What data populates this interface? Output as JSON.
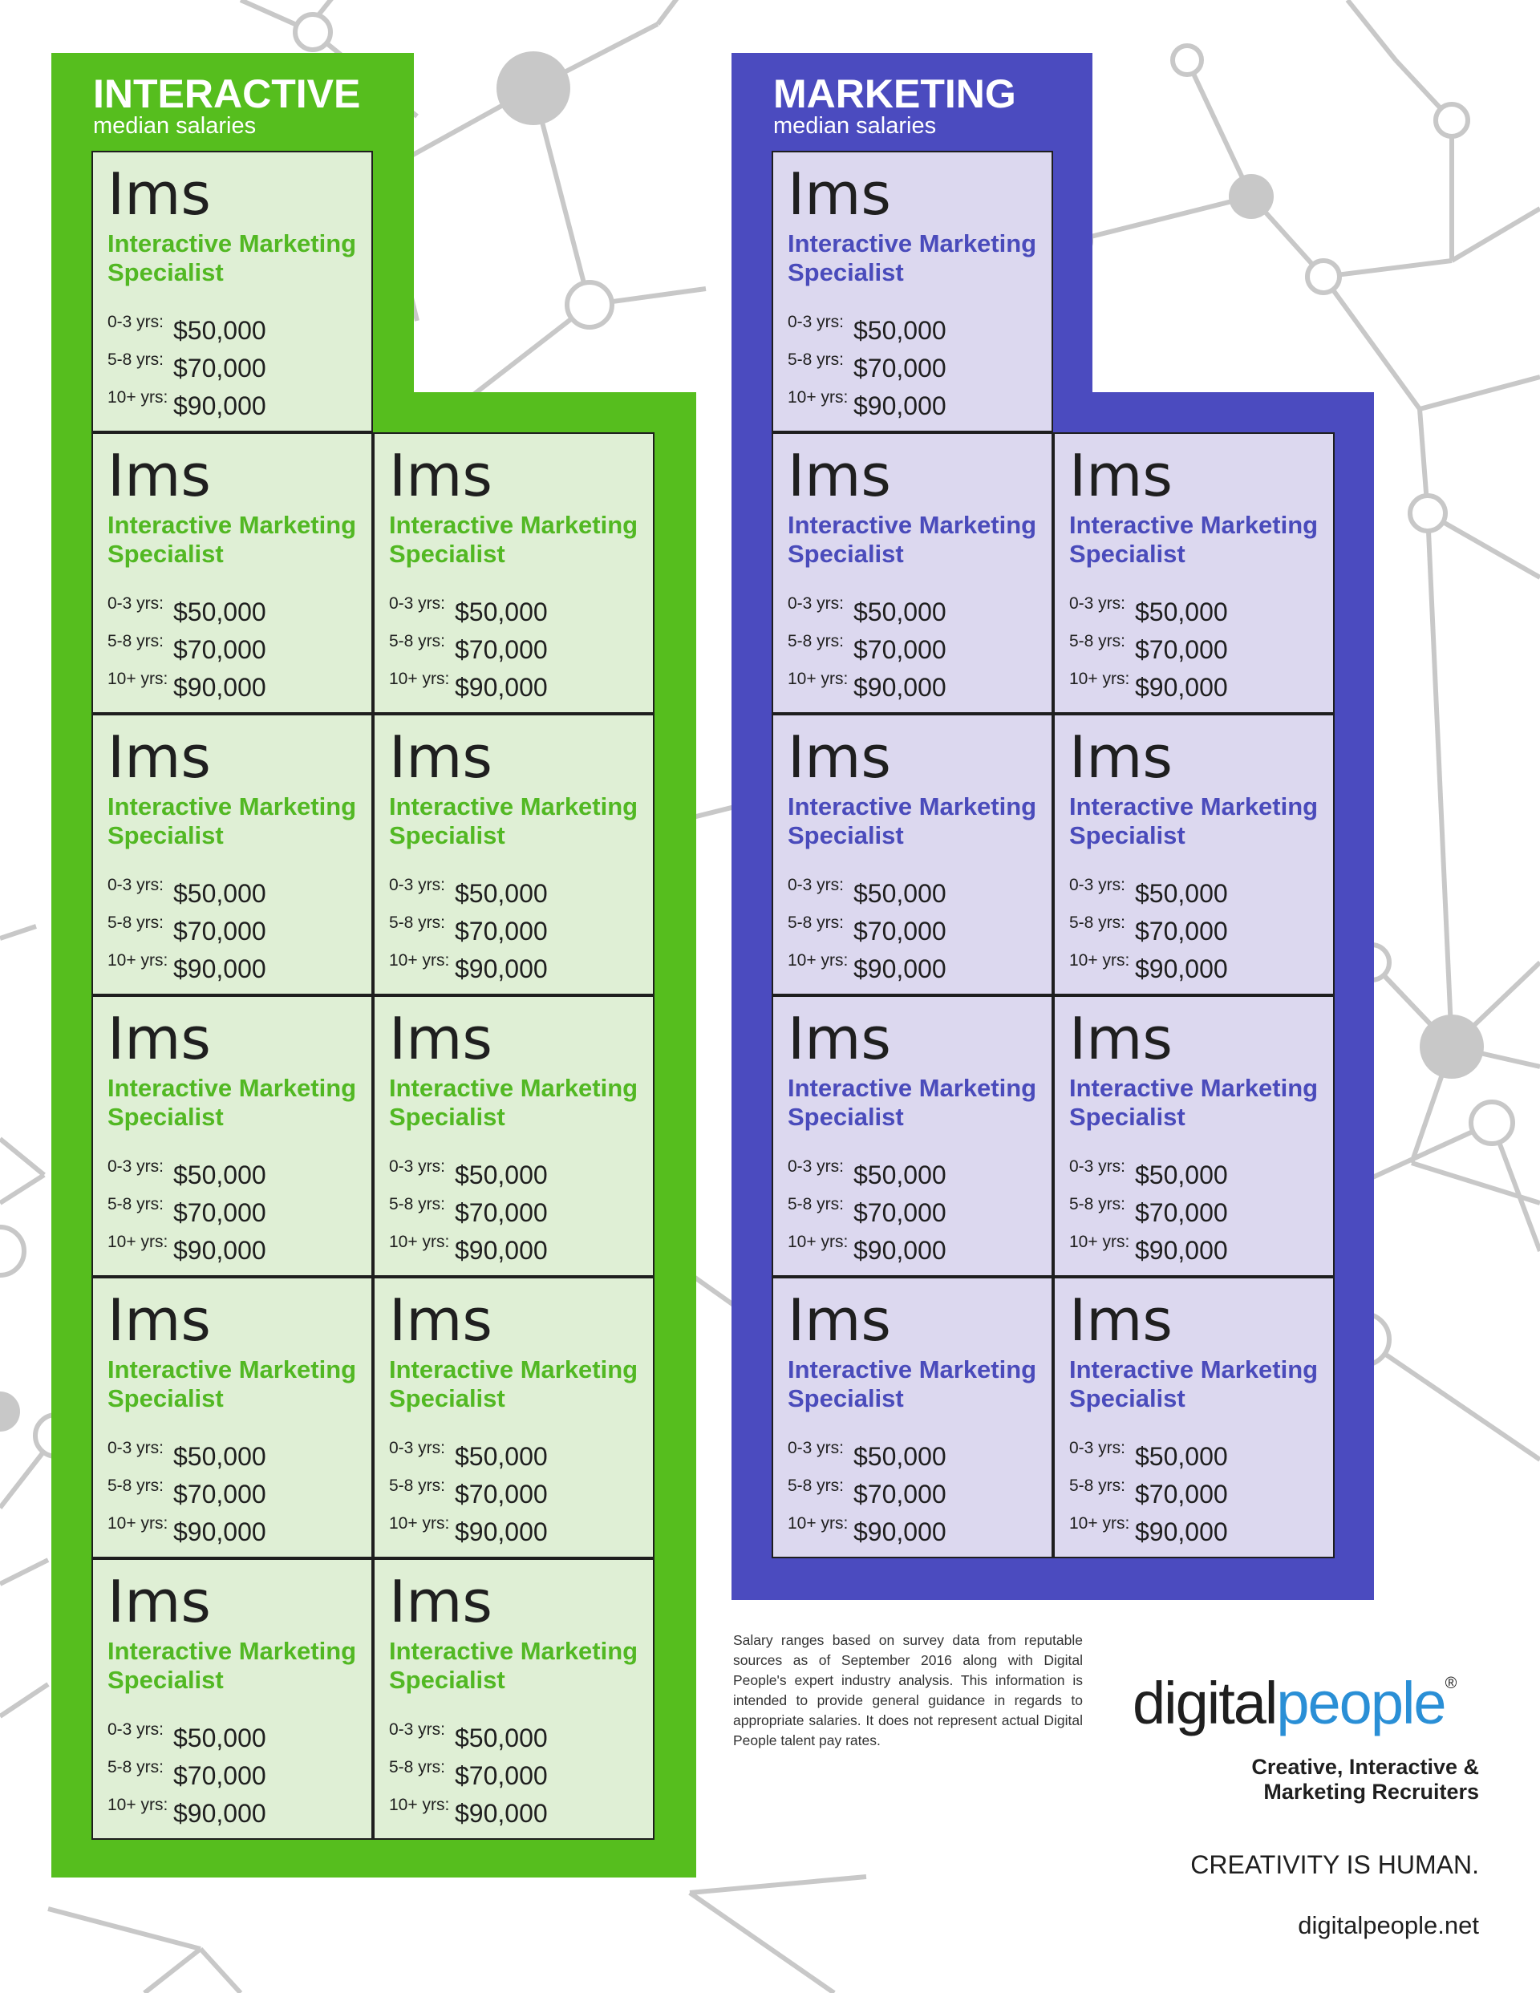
{
  "colors": {
    "interactive_accent": "#56be1e",
    "interactive_card": "#dfefd5",
    "marketing_accent": "#4b4bbf",
    "marketing_card": "#dcd8ef",
    "logo_blue": "#2a8fd6",
    "network_gray": "#c8c8c8"
  },
  "interactive": {
    "title": "INTERACTIVE",
    "subtitle": "median salaries",
    "cards": [
      {
        "abbr": "Ims",
        "title_line1": "Interactive Marketing",
        "title_line2": "Specialist",
        "salaries": [
          {
            "label": "0-3 yrs:",
            "value": "$50,000"
          },
          {
            "label": "5-8 yrs:",
            "value": "$70,000"
          },
          {
            "label": "10+ yrs:",
            "value": "$90,000"
          }
        ]
      },
      {
        "abbr": "Ims",
        "title_line1": "Interactive Marketing",
        "title_line2": "Specialist",
        "salaries": [
          {
            "label": "0-3 yrs:",
            "value": "$50,000"
          },
          {
            "label": "5-8 yrs:",
            "value": "$70,000"
          },
          {
            "label": "10+ yrs:",
            "value": "$90,000"
          }
        ]
      },
      {
        "abbr": "Ims",
        "title_line1": "Interactive Marketing",
        "title_line2": "Specialist",
        "salaries": [
          {
            "label": "0-3 yrs:",
            "value": "$50,000"
          },
          {
            "label": "5-8 yrs:",
            "value": "$70,000"
          },
          {
            "label": "10+ yrs:",
            "value": "$90,000"
          }
        ]
      },
      {
        "abbr": "Ims",
        "title_line1": "Interactive Marketing",
        "title_line2": "Specialist",
        "salaries": [
          {
            "label": "0-3 yrs:",
            "value": "$50,000"
          },
          {
            "label": "5-8 yrs:",
            "value": "$70,000"
          },
          {
            "label": "10+ yrs:",
            "value": "$90,000"
          }
        ]
      },
      {
        "abbr": "Ims",
        "title_line1": "Interactive Marketing",
        "title_line2": "Specialist",
        "salaries": [
          {
            "label": "0-3 yrs:",
            "value": "$50,000"
          },
          {
            "label": "5-8 yrs:",
            "value": "$70,000"
          },
          {
            "label": "10+ yrs:",
            "value": "$90,000"
          }
        ]
      },
      {
        "abbr": "Ims",
        "title_line1": "Interactive Marketing",
        "title_line2": "Specialist",
        "salaries": [
          {
            "label": "0-3 yrs:",
            "value": "$50,000"
          },
          {
            "label": "5-8 yrs:",
            "value": "$70,000"
          },
          {
            "label": "10+ yrs:",
            "value": "$90,000"
          }
        ]
      },
      {
        "abbr": "Ims",
        "title_line1": "Interactive Marketing",
        "title_line2": "Specialist",
        "salaries": [
          {
            "label": "0-3 yrs:",
            "value": "$50,000"
          },
          {
            "label": "5-8 yrs:",
            "value": "$70,000"
          },
          {
            "label": "10+ yrs:",
            "value": "$90,000"
          }
        ]
      },
      {
        "abbr": "Ims",
        "title_line1": "Interactive Marketing",
        "title_line2": "Specialist",
        "salaries": [
          {
            "label": "0-3 yrs:",
            "value": "$50,000"
          },
          {
            "label": "5-8 yrs:",
            "value": "$70,000"
          },
          {
            "label": "10+ yrs:",
            "value": "$90,000"
          }
        ]
      },
      {
        "abbr": "Ims",
        "title_line1": "Interactive Marketing",
        "title_line2": "Specialist",
        "salaries": [
          {
            "label": "0-3 yrs:",
            "value": "$50,000"
          },
          {
            "label": "5-8 yrs:",
            "value": "$70,000"
          },
          {
            "label": "10+ yrs:",
            "value": "$90,000"
          }
        ]
      },
      {
        "abbr": "Ims",
        "title_line1": "Interactive Marketing",
        "title_line2": "Specialist",
        "salaries": [
          {
            "label": "0-3 yrs:",
            "value": "$50,000"
          },
          {
            "label": "5-8 yrs:",
            "value": "$70,000"
          },
          {
            "label": "10+ yrs:",
            "value": "$90,000"
          }
        ]
      },
      {
        "abbr": "Ims",
        "title_line1": "Interactive Marketing",
        "title_line2": "Specialist",
        "salaries": [
          {
            "label": "0-3 yrs:",
            "value": "$50,000"
          },
          {
            "label": "5-8 yrs:",
            "value": "$70,000"
          },
          {
            "label": "10+ yrs:",
            "value": "$90,000"
          }
        ]
      }
    ]
  },
  "marketing": {
    "title": "MARKETING",
    "subtitle": "median salaries",
    "cards": [
      {
        "abbr": "Ims",
        "title_line1": "Interactive Marketing",
        "title_line2": "Specialist",
        "salaries": [
          {
            "label": "0-3 yrs:",
            "value": "$50,000"
          },
          {
            "label": "5-8 yrs:",
            "value": "$70,000"
          },
          {
            "label": "10+ yrs:",
            "value": "$90,000"
          }
        ]
      },
      {
        "abbr": "Ims",
        "title_line1": "Interactive Marketing",
        "title_line2": "Specialist",
        "salaries": [
          {
            "label": "0-3 yrs:",
            "value": "$50,000"
          },
          {
            "label": "5-8 yrs:",
            "value": "$70,000"
          },
          {
            "label": "10+ yrs:",
            "value": "$90,000"
          }
        ]
      },
      {
        "abbr": "Ims",
        "title_line1": "Interactive Marketing",
        "title_line2": "Specialist",
        "salaries": [
          {
            "label": "0-3 yrs:",
            "value": "$50,000"
          },
          {
            "label": "5-8 yrs:",
            "value": "$70,000"
          },
          {
            "label": "10+ yrs:",
            "value": "$90,000"
          }
        ]
      },
      {
        "abbr": "Ims",
        "title_line1": "Interactive Marketing",
        "title_line2": "Specialist",
        "salaries": [
          {
            "label": "0-3 yrs:",
            "value": "$50,000"
          },
          {
            "label": "5-8 yrs:",
            "value": "$70,000"
          },
          {
            "label": "10+ yrs:",
            "value": "$90,000"
          }
        ]
      },
      {
        "abbr": "Ims",
        "title_line1": "Interactive Marketing",
        "title_line2": "Specialist",
        "salaries": [
          {
            "label": "0-3 yrs:",
            "value": "$50,000"
          },
          {
            "label": "5-8 yrs:",
            "value": "$70,000"
          },
          {
            "label": "10+ yrs:",
            "value": "$90,000"
          }
        ]
      },
      {
        "abbr": "Ims",
        "title_line1": "Interactive Marketing",
        "title_line2": "Specialist",
        "salaries": [
          {
            "label": "0-3 yrs:",
            "value": "$50,000"
          },
          {
            "label": "5-8 yrs:",
            "value": "$70,000"
          },
          {
            "label": "10+ yrs:",
            "value": "$90,000"
          }
        ]
      },
      {
        "abbr": "Ims",
        "title_line1": "Interactive Marketing",
        "title_line2": "Specialist",
        "salaries": [
          {
            "label": "0-3 yrs:",
            "value": "$50,000"
          },
          {
            "label": "5-8 yrs:",
            "value": "$70,000"
          },
          {
            "label": "10+ yrs:",
            "value": "$90,000"
          }
        ]
      },
      {
        "abbr": "Ims",
        "title_line1": "Interactive Marketing",
        "title_line2": "Specialist",
        "salaries": [
          {
            "label": "0-3 yrs:",
            "value": "$50,000"
          },
          {
            "label": "5-8 yrs:",
            "value": "$70,000"
          },
          {
            "label": "10+ yrs:",
            "value": "$90,000"
          }
        ]
      },
      {
        "abbr": "Ims",
        "title_line1": "Interactive Marketing",
        "title_line2": "Specialist",
        "salaries": [
          {
            "label": "0-3 yrs:",
            "value": "$50,000"
          },
          {
            "label": "5-8 yrs:",
            "value": "$70,000"
          },
          {
            "label": "10+ yrs:",
            "value": "$90,000"
          }
        ]
      }
    ]
  },
  "footer": {
    "disclaimer": "Salary ranges based on survey data from reputable sources as of September 2016 along with Digital People's expert industry analysis. This information is intended to provide general guidance in regards to appropriate salaries. It does not represent actual Digital People talent pay rates.",
    "logo_part1": "digital",
    "logo_part2": "people",
    "logo_reg": "®",
    "tagline_line1": "Creative, Interactive &",
    "tagline_line2": "Marketing Recruiters",
    "slogan": "CREATIVITY IS HUMAN.",
    "website": "digitalpeople.net"
  }
}
